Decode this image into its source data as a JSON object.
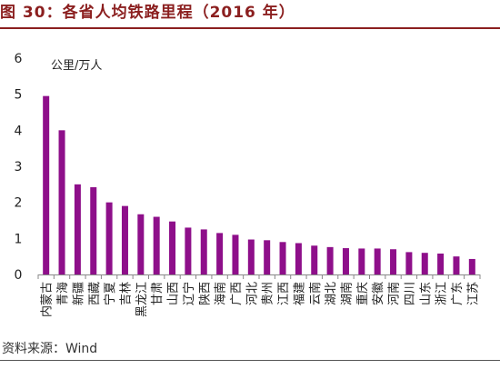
{
  "figure": {
    "title": "图 30：各省人均铁路里程（2016 年）",
    "source": "资料来源：Wind"
  },
  "colors": {
    "bar": "#8e0f8a",
    "axis": "#888888",
    "title": "#8b1f1f"
  },
  "chart_data": {
    "type": "bar",
    "title": "",
    "xlabel": "",
    "ylabel": "公里/万人",
    "ylim": [
      0,
      6
    ],
    "yticks": [
      0,
      1,
      2,
      3,
      4,
      5,
      6
    ],
    "grid": false,
    "legend": "none",
    "categories": [
      "内蒙古",
      "青海",
      "新疆",
      "西藏",
      "宁夏",
      "吉林",
      "黑龙江",
      "甘肃",
      "山西",
      "辽宁",
      "陕西",
      "海南",
      "广西",
      "河北",
      "贵州",
      "江西",
      "福建",
      "云南",
      "湖北",
      "湖南",
      "重庆",
      "安徽",
      "河南",
      "四川",
      "山东",
      "浙江",
      "广东",
      "江苏"
    ],
    "values": [
      4.95,
      4.0,
      2.5,
      2.42,
      2.0,
      1.9,
      1.67,
      1.6,
      1.47,
      1.3,
      1.25,
      1.15,
      1.1,
      0.97,
      0.95,
      0.9,
      0.87,
      0.8,
      0.76,
      0.73,
      0.72,
      0.72,
      0.7,
      0.62,
      0.6,
      0.58,
      0.5,
      0.43
    ]
  }
}
